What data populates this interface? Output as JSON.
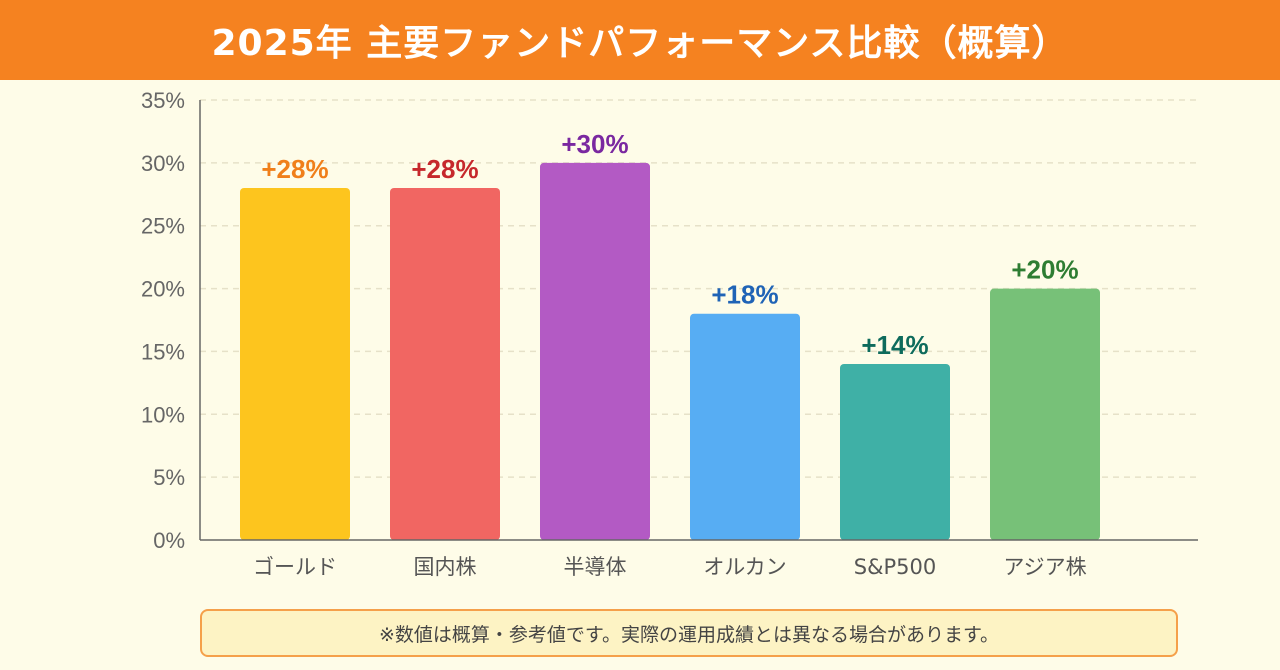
{
  "header": {
    "title": "2025年 主要ファンドパフォーマンス比較（概算）"
  },
  "note": {
    "text": "※数値は概算・参考値です。実際の運用成績とは異なる場合があります。"
  },
  "colors": {
    "header_bg": "#f58220",
    "background": "#fefce8",
    "note_bg": "#fdf3c4",
    "note_border": "#f5a04a",
    "grid": "#e6e1c8",
    "axis": "#666666"
  },
  "chart_data": {
    "type": "bar",
    "title": "2025年 主要ファンドパフォーマンス比較（概算）",
    "xlabel": "",
    "ylabel": "",
    "ylim": [
      0,
      35
    ],
    "ytick_step": 5,
    "ytick_suffix": "%",
    "grid": true,
    "categories": [
      "ゴールド",
      "国内株",
      "半導体",
      "オルカン",
      "S&P500",
      "アジア株"
    ],
    "values": [
      28,
      28,
      30,
      18,
      14,
      20
    ],
    "value_labels": [
      "+28%",
      "+28%",
      "+30%",
      "+18%",
      "+14%",
      "+20%"
    ],
    "bar_colors": [
      "#fdc51e",
      "#f16662",
      "#b35ac4",
      "#57adf3",
      "#3fb0a6",
      "#77c178"
    ],
    "label_colors": [
      "#f07f1a",
      "#c6282c",
      "#7a28a0",
      "#1f63b6",
      "#0e6b5c",
      "#2e7d32"
    ]
  }
}
